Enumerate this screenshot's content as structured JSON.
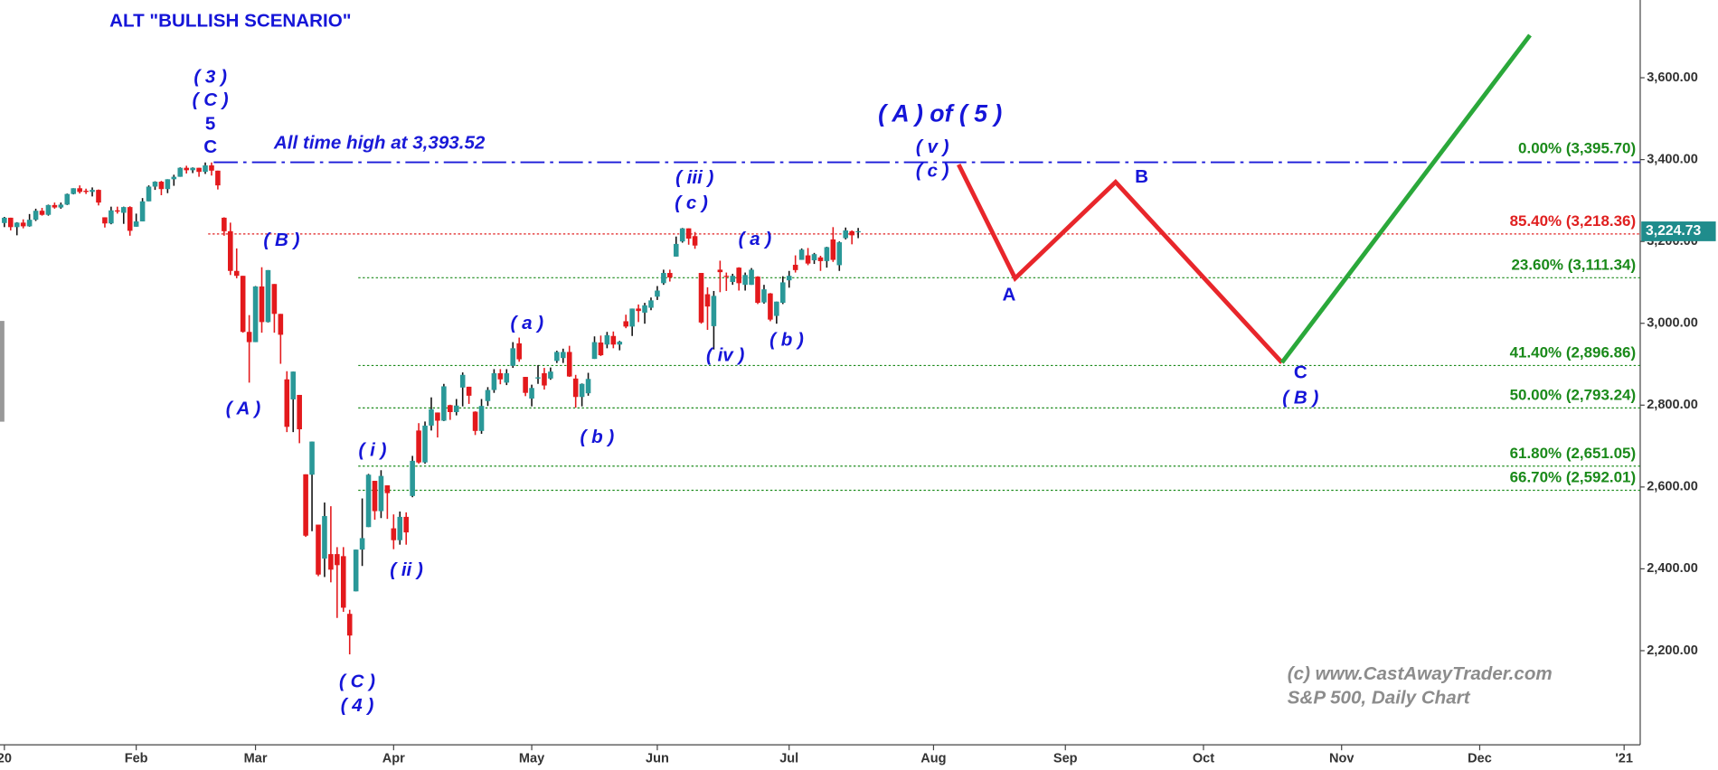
{
  "chart_data": {
    "type": "candlestick",
    "title": "ALT \"BULLISH SCENARIO\"",
    "credit": [
      "(c) www.CastAwayTrader.com",
      "S&P 500, Daily Chart"
    ],
    "up_color": "#2a9898",
    "down_color": "#e3191c",
    "xlim": [
      0,
      261
    ],
    "xticks": [
      {
        "value": 0,
        "label": "20"
      },
      {
        "value": 21,
        "label": "Feb"
      },
      {
        "value": 40,
        "label": "Mar"
      },
      {
        "value": 62,
        "label": "Apr"
      },
      {
        "value": 84,
        "label": "May"
      },
      {
        "value": 104,
        "label": "Jun"
      },
      {
        "value": 125,
        "label": "Jul"
      },
      {
        "value": 148,
        "label": "Aug"
      },
      {
        "value": 169,
        "label": "Sep"
      },
      {
        "value": 191,
        "label": "Oct"
      },
      {
        "value": 213,
        "label": "Nov"
      },
      {
        "value": 235,
        "label": "Dec"
      },
      {
        "value": 258,
        "label": "'21"
      }
    ],
    "ylim": [
      1970,
      3790
    ],
    "yticks": [
      {
        "value": 2200,
        "label": "2,200.00"
      },
      {
        "value": 2400,
        "label": "2,400.00"
      },
      {
        "value": 2600,
        "label": "2,600.00"
      },
      {
        "value": 2800,
        "label": "2,800.00"
      },
      {
        "value": 3000,
        "label": "3,000.00"
      },
      {
        "value": 3200,
        "label": "3,200.00"
      },
      {
        "value": 3400,
        "label": "3,400.00"
      },
      {
        "value": 3600,
        "label": "3,600.00"
      }
    ],
    "open": [
      3245,
      3258,
      3235,
      3246,
      3237,
      3253,
      3275,
      3265,
      3289,
      3283,
      3290,
      3316,
      3330,
      3324,
      3321,
      3326,
      3259,
      3244,
      3276,
      3270,
      3284,
      3236,
      3249,
      3298,
      3334,
      3346,
      3328,
      3352,
      3358,
      3380,
      3374,
      3380,
      3370,
      3386,
      3373,
      3258,
      3225,
      3128,
      3116,
      2979,
      2954,
      3090,
      3003,
      3096,
      3023,
      2863,
      2814,
      2825,
      2631,
      2630,
      2508,
      2425,
      2436,
      2436,
      2431,
      2290,
      2345,
      2447,
      2502,
      2615,
      2541,
      2604,
      2499,
      2470,
      2527,
      2578,
      2738,
      2660,
      2750,
      2782,
      2762,
      2800,
      2783,
      2843,
      2845,
      2784,
      2737,
      2810,
      2837,
      2878,
      2855,
      2896,
      2951,
      2869,
      2816,
      2865,
      2878,
      2865,
      2908,
      2915,
      2930,
      2865,
      2820,
      2829,
      2913,
      2953,
      2948,
      2969,
      2948,
      3005,
      2992,
      3036,
      3026,
      3038,
      3065,
      3098,
      3123,
      3163,
      3200,
      3232,
      3213,
      3123,
      3071,
      2993,
      3131,
      3116,
      3101,
      3136,
      3094,
      3094,
      3114,
      3051,
      3073,
      3018,
      3050,
      3105,
      3143,
      3155,
      3166,
      3154,
      3161,
      3152,
      3205,
      3142,
      3208,
      3225,
      3224
    ],
    "high": [
      3260,
      3258,
      3247,
      3254,
      3267,
      3280,
      3282,
      3290,
      3295,
      3295,
      3317,
      3330,
      3337,
      3329,
      3332,
      3327,
      3259,
      3285,
      3285,
      3285,
      3286,
      3268,
      3306,
      3337,
      3347,
      3348,
      3352,
      3363,
      3381,
      3385,
      3381,
      3380,
      3393,
      3393,
      3373,
      3259,
      3246,
      3183,
      3116,
      3020,
      3091,
      3137,
      3130,
      3096,
      3023,
      2883,
      2882,
      2825,
      2631,
      2711,
      2508,
      2562,
      2553,
      2453,
      2453,
      2300,
      2447,
      2572,
      2632,
      2615,
      2641,
      2604,
      2533,
      2540,
      2538,
      2676,
      2756,
      2760,
      2819,
      2782,
      2852,
      2801,
      2815,
      2880,
      2845,
      2785,
      2815,
      2844,
      2888,
      2888,
      2888,
      2954,
      2965,
      2869,
      2850,
      2898,
      2891,
      2892,
      2933,
      2938,
      2945,
      2874,
      2853,
      2879,
      2968,
      2970,
      2979,
      2980,
      2957,
      3021,
      3036,
      3046,
      3050,
      3063,
      3091,
      3131,
      3131,
      3212,
      3233,
      3232,
      3223,
      3123,
      3088,
      3079,
      3153,
      3124,
      3121,
      3137,
      3124,
      3135,
      3115,
      3094,
      3074,
      3053,
      3115,
      3128,
      3166,
      3183,
      3184,
      3172,
      3165,
      3187,
      3235,
      3200,
      3234,
      3227,
      3233
    ],
    "low": [
      3235,
      3227,
      3215,
      3232,
      3236,
      3250,
      3263,
      3263,
      3280,
      3280,
      3289,
      3315,
      3317,
      3316,
      3310,
      3288,
      3234,
      3242,
      3268,
      3243,
      3214,
      3236,
      3249,
      3298,
      3326,
      3313,
      3318,
      3336,
      3358,
      3366,
      3367,
      3358,
      3365,
      3361,
      3327,
      3214,
      3118,
      3110,
      2977,
      2855,
      2954,
      2977,
      3002,
      2977,
      2901,
      2734,
      2734,
      2707,
      2478,
      2492,
      2382,
      2380,
      2367,
      2280,
      2295,
      2191,
      2345,
      2407,
      2502,
      2520,
      2524,
      2522,
      2448,
      2459,
      2459,
      2575,
      2657,
      2657,
      2738,
      2721,
      2761,
      2764,
      2775,
      2797,
      2803,
      2727,
      2730,
      2798,
      2830,
      2851,
      2849,
      2891,
      2906,
      2822,
      2797,
      2852,
      2838,
      2862,
      2903,
      2903,
      2869,
      2794,
      2797,
      2823,
      2913,
      2920,
      2939,
      2939,
      2934,
      2988,
      2969,
      3003,
      2999,
      3032,
      3057,
      3094,
      3102,
      3163,
      3197,
      3192,
      3182,
      2999,
      2984,
      2936,
      3076,
      3079,
      3094,
      3080,
      3080,
      3094,
      3047,
      3048,
      3005,
      2999,
      3047,
      3087,
      3124,
      3155,
      3142,
      3145,
      3128,
      3136,
      3150,
      3128,
      3205,
      3193,
      3208
    ],
    "close": [
      3258,
      3235,
      3246,
      3237,
      3253,
      3275,
      3265,
      3289,
      3283,
      3290,
      3316,
      3330,
      3321,
      3321,
      3326,
      3295,
      3244,
      3276,
      3273,
      3284,
      3226,
      3249,
      3298,
      3334,
      3346,
      3328,
      3352,
      3358,
      3380,
      3374,
      3380,
      3370,
      3386,
      3373,
      3337,
      3225,
      3128,
      3116,
      2979,
      2954,
      3090,
      3003,
      3130,
      3023,
      2972,
      2747,
      2882,
      2741,
      2481,
      2711,
      2386,
      2529,
      2398,
      2409,
      2305,
      2237,
      2447,
      2475,
      2630,
      2541,
      2627,
      2585,
      2470,
      2527,
      2489,
      2664,
      2660,
      2750,
      2790,
      2762,
      2846,
      2783,
      2799,
      2874,
      2823,
      2737,
      2798,
      2837,
      2878,
      2863,
      2878,
      2939,
      2912,
      2830,
      2842,
      2868,
      2848,
      2882,
      2930,
      2930,
      2870,
      2820,
      2852,
      2864,
      2954,
      2922,
      2971,
      2948,
      2955,
      2992,
      3036,
      3030,
      3044,
      3056,
      3080,
      3123,
      3112,
      3194,
      3232,
      3207,
      3190,
      3002,
      3041,
      3067,
      3125,
      3114,
      3116,
      3098,
      3118,
      3131,
      3050,
      3083,
      3009,
      3053,
      3100,
      3116,
      3130,
      3180,
      3146,
      3169,
      3152,
      3186,
      3155,
      3198,
      3227,
      3215,
      3225
    ],
    "ath": {
      "label": "All time high at 3,393.52",
      "value": 3393.52,
      "color": "#1a1ad8"
    },
    "last_price": {
      "value": 3224.73,
      "label": "3,224.73",
      "color": "#1f8c8c"
    },
    "fib_levels": [
      {
        "label": "0.00% (3,395.70)",
        "value": 3395.7,
        "color": "#1a8a1a"
      },
      {
        "label": "85.40% (3,218.36)",
        "value": 3218.36,
        "color": "#e02020"
      },
      {
        "label": "23.60% (3,111.34)",
        "value": 3111.34,
        "color": "#1a8a1a"
      },
      {
        "label": "41.40% (2,896.86)",
        "value": 2896.86,
        "color": "#1a8a1a"
      },
      {
        "label": "50.00% (2,793.24)",
        "value": 2793.24,
        "color": "#1a8a1a"
      },
      {
        "label": "61.80% (2,651.05)",
        "value": 2651.05,
        "color": "#1a8a1a"
      },
      {
        "label": "66.70% (2,592.01)",
        "value": 2592.01,
        "color": "#1a8a1a"
      }
    ],
    "projection": [
      {
        "color": "#e8262b",
        "x": [
          152,
          161,
          177,
          203.5
        ],
        "values": [
          3388,
          3110,
          3345,
          2904
        ]
      },
      {
        "color": "#2aa83a",
        "x": [
          203.5,
          243
        ],
        "values": [
          2904,
          3704
        ]
      }
    ],
    "wave_labels": [
      "( 3 )",
      "( C )",
      "5",
      "C",
      "( B )",
      "( A )",
      "( C )",
      "( 4 )",
      "( i )",
      "( ii )",
      "( a )",
      "( b )",
      "( iii )",
      "( c )",
      "( iv )",
      "( a )",
      "( b )",
      "( v )",
      "( c )",
      "( A ) of ( 5 )",
      "A",
      "B",
      "C",
      "( B )"
    ]
  }
}
